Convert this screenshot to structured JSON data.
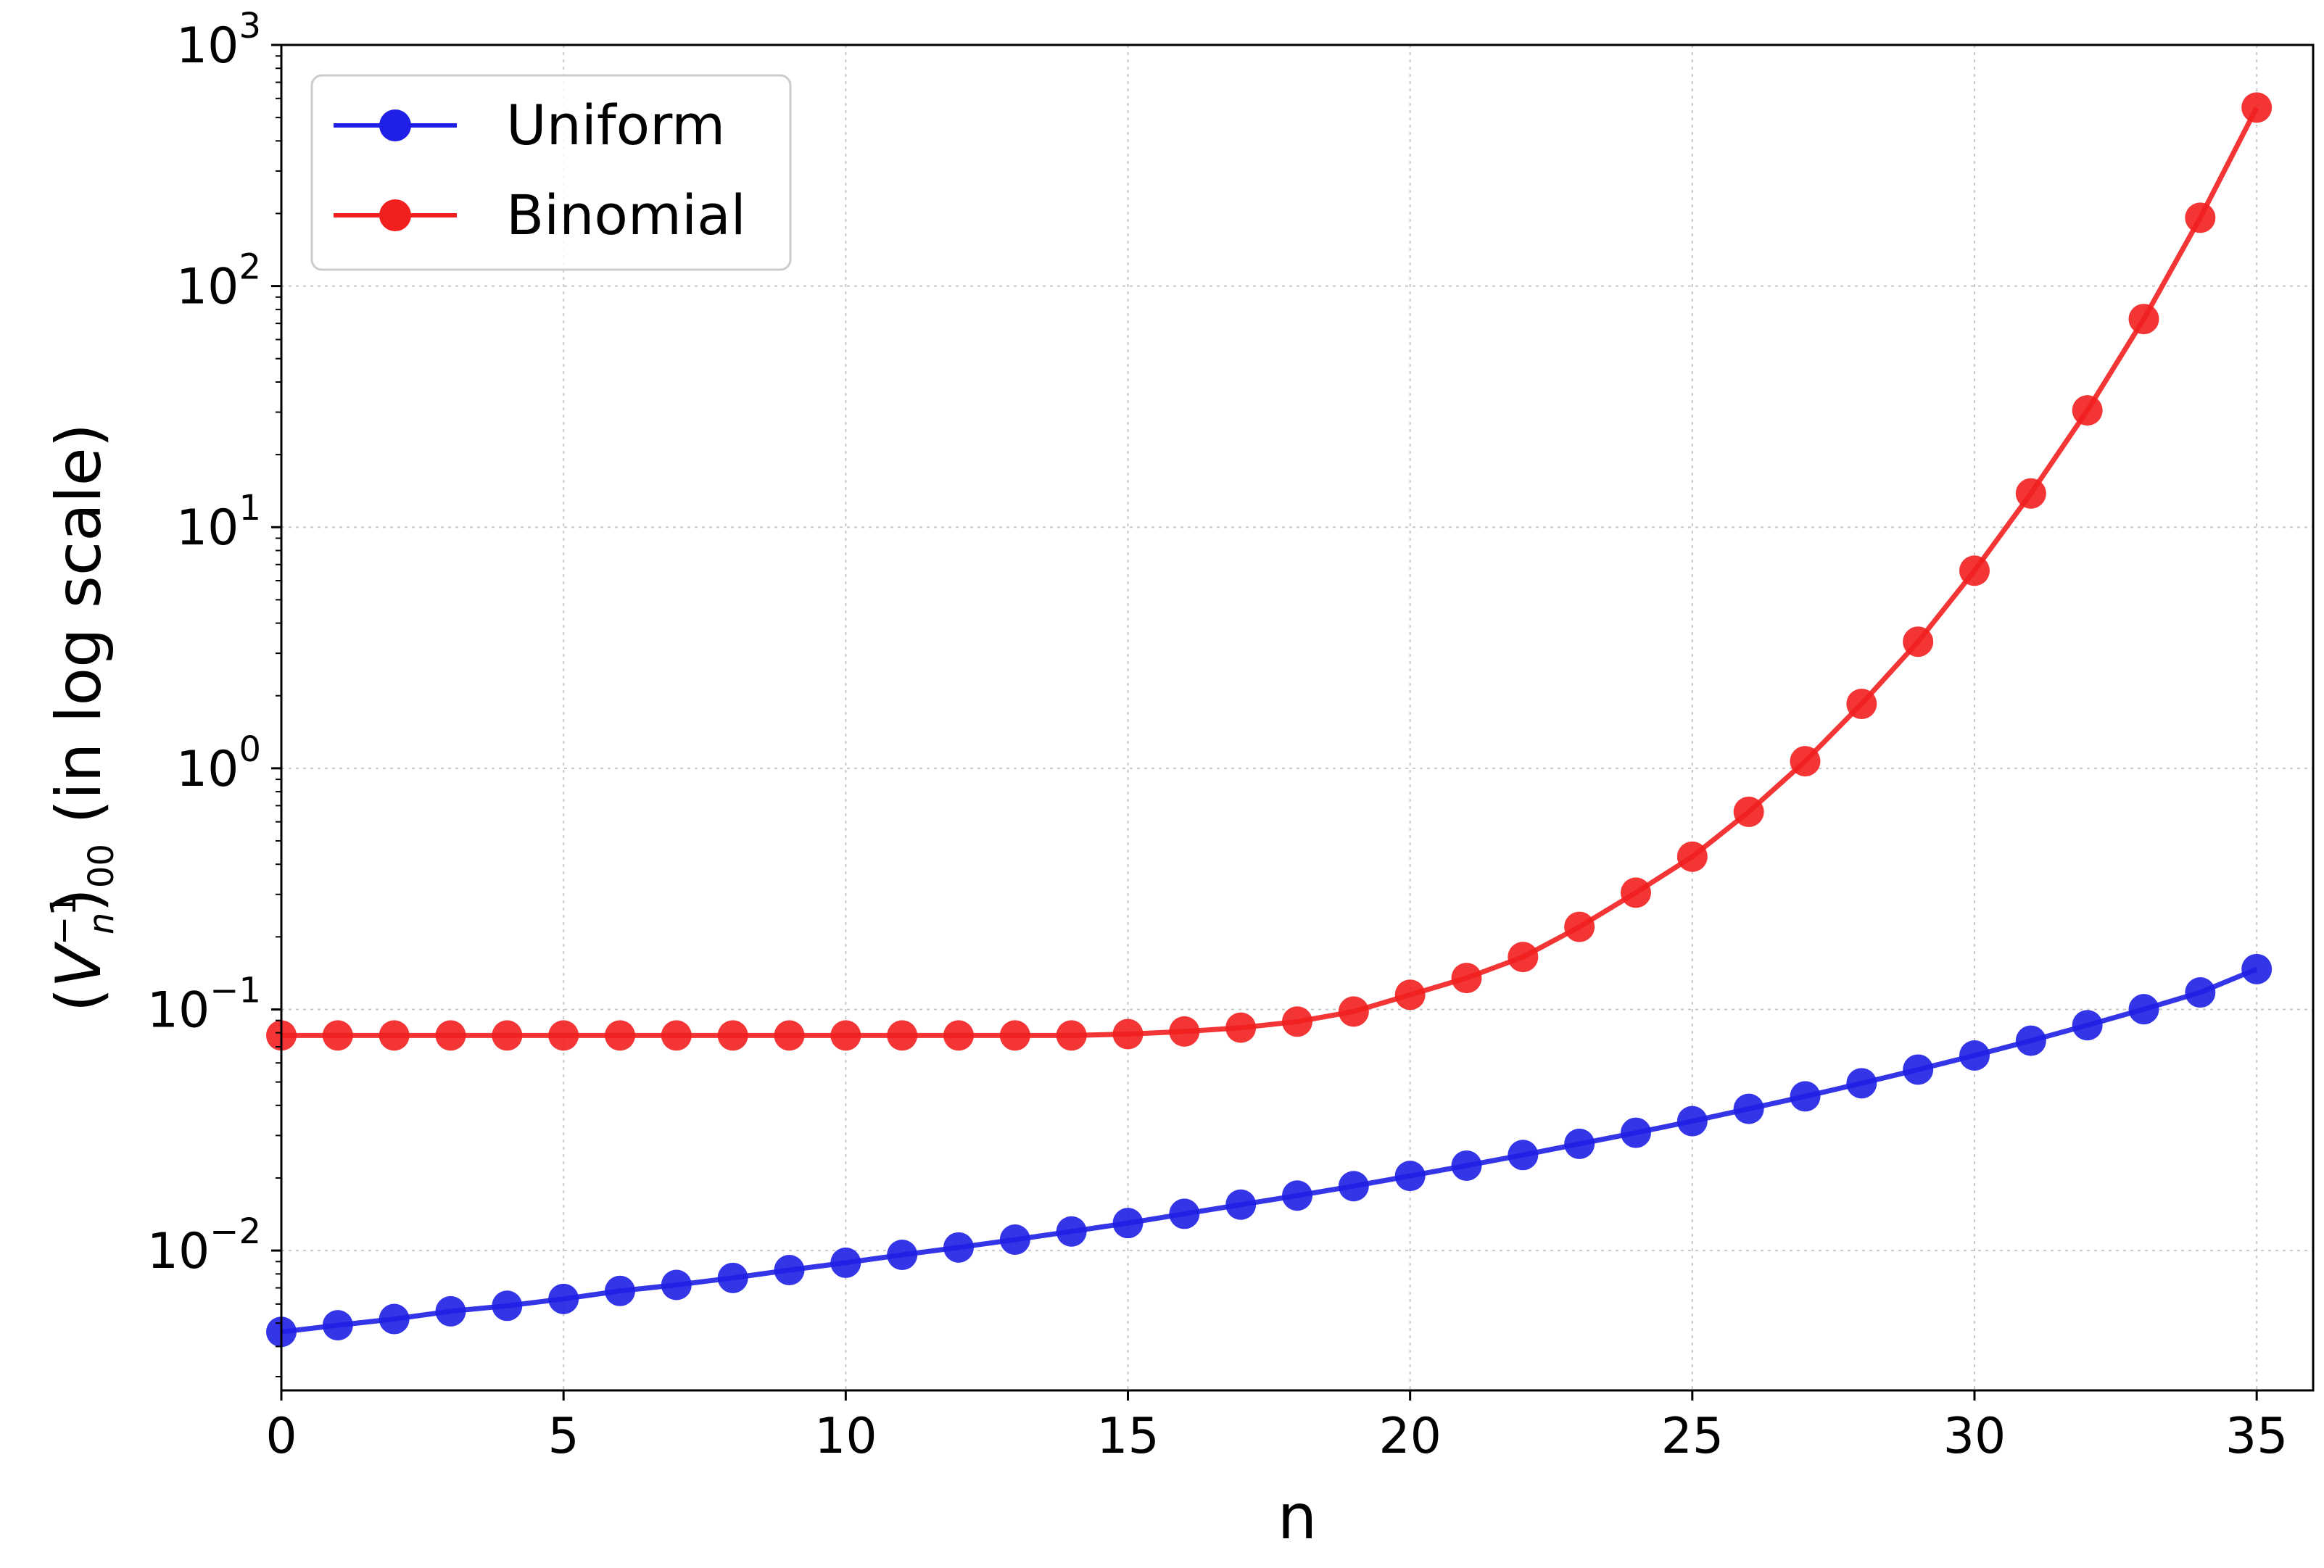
{
  "chart_data": {
    "type": "line",
    "xlabel": "n",
    "ylabel_parts": {
      "open": "(",
      "var": "V",
      "sup": "−1",
      "sub_var": "n",
      "close": ")",
      "sub": "00",
      "rest": " (in log scale)"
    },
    "yscale": "log",
    "xlim": [
      0,
      36
    ],
    "ylim_log10": [
      -2.58,
      3
    ],
    "grid": true,
    "legend_position": "top-left",
    "x_ticks": [
      0,
      5,
      10,
      15,
      20,
      25,
      30,
      35
    ],
    "y_ticks": [
      {
        "base": "10",
        "exp": "−2",
        "value": 0.01
      },
      {
        "base": "10",
        "exp": "−1",
        "value": 0.1
      },
      {
        "base": "10",
        "exp": "0",
        "value": 1
      },
      {
        "base": "10",
        "exp": "1",
        "value": 10
      },
      {
        "base": "10",
        "exp": "2",
        "value": 100
      },
      {
        "base": "10",
        "exp": "3",
        "value": 1000
      }
    ],
    "x": [
      0,
      1,
      2,
      3,
      4,
      5,
      6,
      7,
      8,
      9,
      10,
      11,
      12,
      13,
      14,
      15,
      16,
      17,
      18,
      19,
      20,
      21,
      22,
      23,
      24,
      25,
      26,
      27,
      28,
      29,
      30,
      31,
      32,
      33,
      34,
      35
    ],
    "series": [
      {
        "name": "Uniform",
        "color": "#1f1fe6",
        "values": [
          0.0046,
          0.0049,
          0.0052,
          0.0056,
          0.0059,
          0.0063,
          0.0068,
          0.0072,
          0.0077,
          0.0083,
          0.0089,
          0.0096,
          0.0103,
          0.0111,
          0.012,
          0.013,
          0.0142,
          0.0155,
          0.0169,
          0.0185,
          0.0204,
          0.0225,
          0.0249,
          0.0277,
          0.0308,
          0.0344,
          0.0387,
          0.0436,
          0.0494,
          0.0563,
          0.0644,
          0.0742,
          0.086,
          0.1002,
          0.1176,
          0.147
        ]
      },
      {
        "name": "Binomial",
        "color": "#f21f1f",
        "values": [
          0.078,
          0.078,
          0.078,
          0.078,
          0.078,
          0.078,
          0.078,
          0.078,
          0.078,
          0.078,
          0.078,
          0.078,
          0.078,
          0.078,
          0.078,
          0.079,
          0.081,
          0.084,
          0.089,
          0.098,
          0.115,
          0.135,
          0.165,
          0.22,
          0.305,
          0.43,
          0.66,
          1.07,
          1.85,
          3.35,
          6.6,
          13.8,
          30.5,
          73,
          192,
          550
        ]
      }
    ]
  }
}
